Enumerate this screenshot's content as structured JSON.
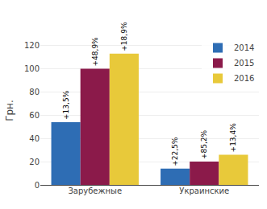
{
  "chart_data": {
    "type": "bar",
    "categories": [
      "Зарубежные",
      "Украинские"
    ],
    "series": [
      {
        "name": "2014",
        "color": "#2E6DB4",
        "values": [
          54,
          14
        ],
        "annotations": [
          "+13,5%",
          "+22,5%"
        ]
      },
      {
        "name": "2015",
        "color": "#8B1A4A",
        "values": [
          100,
          20
        ],
        "annotations": [
          "+48,9%",
          "+85,2%"
        ]
      },
      {
        "name": "2016",
        "color": "#E8C93A",
        "values": [
          113,
          26
        ],
        "annotations": [
          "+18,9%",
          "+13,4%"
        ]
      }
    ],
    "ylabel": "Грн.",
    "ylim": [
      0,
      128
    ],
    "yticks": [
      0,
      20,
      40,
      60,
      80,
      100,
      120
    ],
    "grid": true,
    "legend": "top right"
  }
}
